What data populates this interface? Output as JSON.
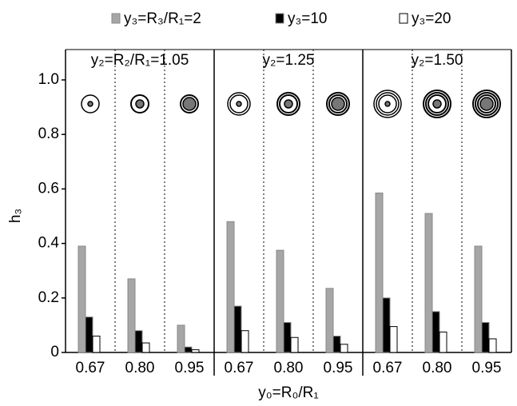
{
  "chart_data": {
    "type": "bar",
    "x_label": "y₀=R₀/R₁",
    "y_label": "h₃",
    "group_labels": [
      "y₂=R₂/R₁=1.05",
      "y₂=1.25",
      "y₂=1.50"
    ],
    "categories": [
      "0.67",
      "0.80",
      "0.95",
      "0.67",
      "0.80",
      "0.95",
      "0.67",
      "0.80",
      "0.95"
    ],
    "series": [
      {
        "name": "y₃=R₃/R₁=2",
        "color": "#a6a6a6",
        "values": [
          0.39,
          0.27,
          0.1,
          0.48,
          0.375,
          0.235,
          0.585,
          0.51,
          0.39
        ]
      },
      {
        "name": "y₃=10",
        "color": "#000000",
        "values": [
          0.13,
          0.08,
          0.02,
          0.17,
          0.11,
          0.06,
          0.2,
          0.15,
          0.11
        ]
      },
      {
        "name": "y₃=20",
        "color": "#ffffff",
        "values": [
          0.06,
          0.035,
          0.01,
          0.08,
          0.055,
          0.03,
          0.095,
          0.075,
          0.05
        ]
      }
    ],
    "ylim": [
      0,
      1
    ],
    "yticks": [
      0,
      0.2,
      0.4,
      0.6,
      0.8,
      {
        "value": 1,
        "label": "1.0"
      }
    ]
  }
}
